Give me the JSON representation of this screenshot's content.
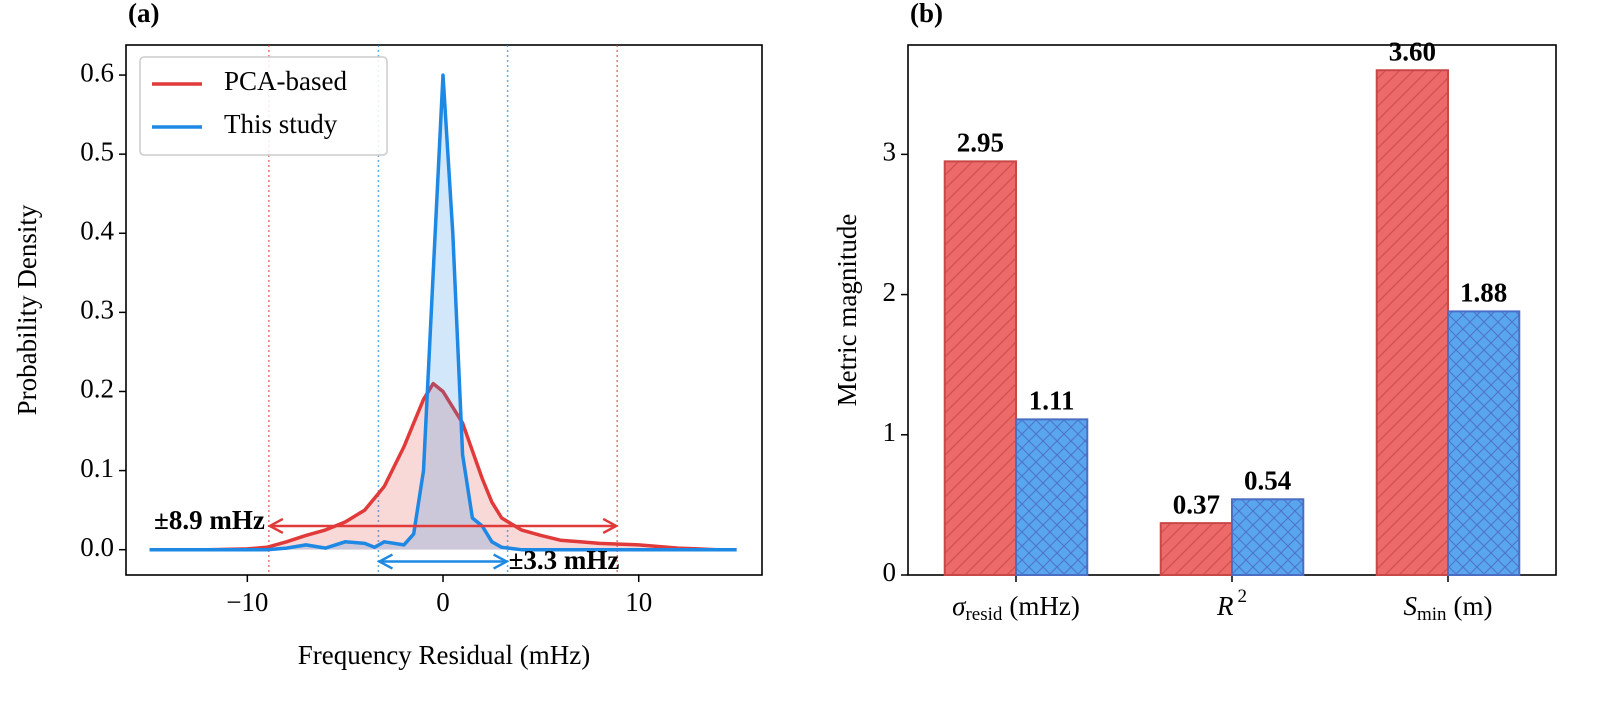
{
  "chart_data": [
    {
      "type": "line",
      "title": "(a)",
      "xlabel": "Frequency Residual (mHz)",
      "ylabel": "Probability Density",
      "x": [
        -15,
        -12,
        -10,
        -9,
        -8,
        -7,
        -6,
        -5,
        -4,
        -3.5,
        -3,
        -2,
        -1.5,
        -1,
        -0.5,
        0,
        0.5,
        1,
        1.5,
        2,
        2.5,
        3,
        4,
        5,
        6,
        7,
        8,
        9,
        10,
        11,
        12,
        13,
        14,
        15
      ],
      "series": [
        {
          "name": "PCA-based",
          "color": "#e03a3a",
          "fill": true,
          "values": [
            0,
            0,
            0.001,
            0.003,
            0.01,
            0.018,
            0.025,
            0.035,
            0.05,
            0.065,
            0.08,
            0.13,
            0.16,
            0.19,
            0.21,
            0.2,
            0.18,
            0.16,
            0.125,
            0.09,
            0.06,
            0.04,
            0.025,
            0.018,
            0.012,
            0.01,
            0.008,
            0.007,
            0.006,
            0.004,
            0.002,
            0.001,
            0,
            0
          ]
        },
        {
          "name": "This study",
          "color": "#1e88e5",
          "fill": true,
          "values": [
            0,
            0,
            0,
            0,
            0.002,
            0.006,
            0.002,
            0.01,
            0.008,
            0.003,
            0.01,
            0.006,
            0.02,
            0.1,
            0.35,
            0.6,
            0.4,
            0.12,
            0.04,
            0.03,
            0.01,
            0.003,
            0,
            0,
            0,
            0,
            0,
            0,
            0,
            0,
            0,
            0,
            0,
            0
          ]
        }
      ],
      "annotations": [
        {
          "text": "±8.9 mHz",
          "lo": -8.9,
          "hi": 8.9,
          "y": 0.03,
          "color": "#e03a3a",
          "text_side": "left"
        },
        {
          "text": "±3.3 mHz",
          "lo": -3.3,
          "hi": 3.3,
          "y": -0.015,
          "color": "#1e88e5",
          "text_side": "right"
        }
      ],
      "xlim": [
        -16.2,
        16.3
      ],
      "xticks": [
        {
          "value": -10,
          "label": "−10"
        },
        0,
        10
      ],
      "ylim": [
        -0.032,
        0.638
      ],
      "yticks": [
        {
          "value": 0,
          "label": "0.0"
        },
        0.1,
        0.2,
        0.3,
        0.4,
        0.5,
        0.6
      ],
      "legend": "upper left"
    },
    {
      "type": "bar",
      "title": "(b)",
      "ylabel": "Metric magnitude",
      "categories": [
        {
          "symbol": "σ",
          "sub": "resid",
          "unit": "(mHz)"
        },
        {
          "symbol": "R",
          "sup": "2"
        },
        {
          "symbol": "S",
          "sub": "min",
          "unit": "(m)"
        }
      ],
      "series": [
        {
          "name": "PCA-based",
          "color": "#ec6a6a",
          "edgecolor": "#c84848",
          "label_color": "#e03a3a",
          "hatch": "//",
          "values": [
            2.95,
            0.37,
            3.6
          ],
          "value_labels": [
            "2.95",
            "0.37",
            "3.60"
          ]
        },
        {
          "name": "This study",
          "color": "#5aa6ee",
          "edgecolor": "#4a6ec4",
          "label_color": "#1e88e5",
          "hatch": "xx",
          "values": [
            1.11,
            0.54,
            1.88
          ],
          "value_labels": [
            "1.11",
            "0.54",
            "1.88"
          ]
        }
      ],
      "ylim": [
        0,
        3.78
      ],
      "yticks": [
        0,
        1,
        2,
        3
      ]
    }
  ]
}
